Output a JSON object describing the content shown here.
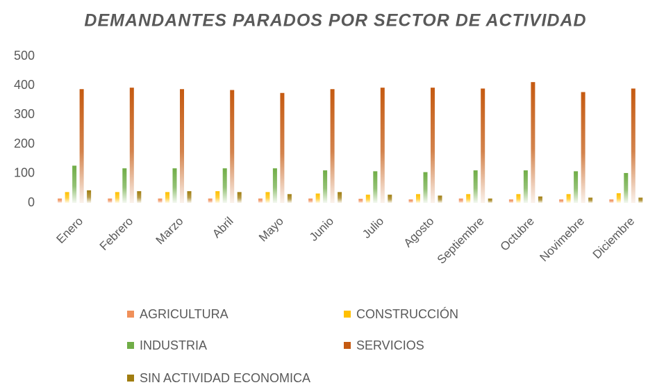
{
  "chart_data": {
    "type": "bar",
    "title": "DEMANDANTES PARADOS POR SECTOR DE ACTIVIDAD",
    "categories": [
      "Enero",
      "Febrero",
      "Marzo",
      "Abril",
      "Mayo",
      "Junio",
      "Julio",
      "Agosto",
      "Septiembre",
      "Octubre",
      "Novimebre",
      "Diciembre"
    ],
    "series": [
      {
        "name": "AGRICULTURA",
        "color": "#f0905a",
        "values": [
          15,
          15,
          15,
          15,
          15,
          15,
          14,
          12,
          15,
          12,
          12,
          12
        ]
      },
      {
        "name": "CONSTRUCCIÓN",
        "color": "#ffc000",
        "values": [
          37,
          37,
          37,
          40,
          37,
          32,
          28,
          30,
          30,
          30,
          30,
          33
        ]
      },
      {
        "name": "INDUSTRIA",
        "color": "#70ad47",
        "values": [
          127,
          118,
          118,
          118,
          118,
          111,
          108,
          105,
          111,
          111,
          108,
          102
        ]
      },
      {
        "name": "SERVICIOS",
        "color": "#c55a11",
        "values": [
          388,
          393,
          388,
          385,
          375,
          388,
          393,
          393,
          390,
          412,
          378,
          390
        ]
      },
      {
        "name": "SIN ACTIVIDAD ECONOMICA",
        "color": "#a07d10",
        "values": [
          43,
          40,
          40,
          37,
          30,
          37,
          28,
          25,
          15,
          22,
          18,
          18
        ]
      }
    ],
    "ylim": [
      0,
      500
    ],
    "yticks": [
      0,
      100,
      200,
      300,
      400,
      500
    ],
    "grid": false
  }
}
